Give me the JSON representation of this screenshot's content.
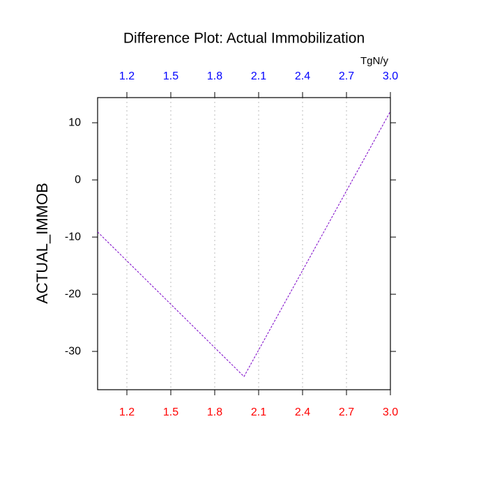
{
  "chart_data": {
    "type": "line",
    "title": "Difference Plot: Actual Immobilization",
    "ylabel": "ACTUAL_IMMOB",
    "x2label": "TgN/y",
    "x": [
      1.0,
      2.0,
      3.0
    ],
    "series": [
      {
        "values": [
          -9.1,
          -34.4,
          12.0
        ],
        "color": "#7a00c8"
      }
    ],
    "xlim": [
      1.0,
      3.0
    ],
    "ylim": [
      -36.7,
      14.4
    ],
    "xticks": [
      1.2,
      1.5,
      1.8,
      2.1,
      2.4,
      {
        "value": 2.7,
        "label": "2.7"
      },
      {
        "value": 3,
        "label": "3.0"
      }
    ],
    "yticks": [
      -30,
      -20,
      -10,
      0,
      10
    ],
    "xtick_color": "#ff0000",
    "x2tick_color": "#0000ff",
    "grid": true
  }
}
